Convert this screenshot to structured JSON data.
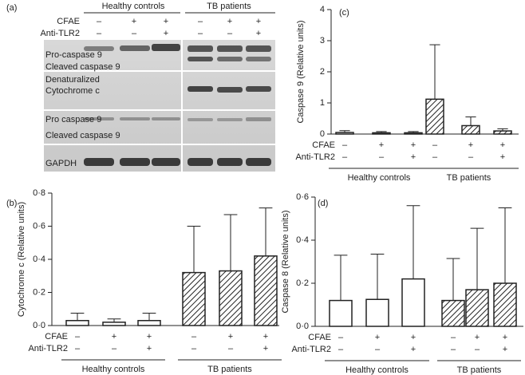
{
  "blot": {
    "panel_label": "(a)",
    "groups": [
      "Healthy controls",
      "TB patients"
    ],
    "conditions": [
      {
        "name": "CFAE",
        "signs": [
          "–",
          "+",
          "+"
        ]
      },
      {
        "name": "Anti-TLR2",
        "signs": [
          "–",
          "–",
          "+"
        ]
      }
    ],
    "rows": [
      "Pro-caspase 9",
      "Cleaved caspase 9",
      "Denaturalized",
      "Cytochrome c",
      "Pro caspase 9",
      "Cleaved caspase 9",
      "GAPDH"
    ]
  },
  "chart_data": [
    {
      "type": "bar",
      "panel_label": "(c)",
      "ylabel": "Caspase 9 (Relative units)",
      "ylim": [
        0,
        4
      ],
      "yticks": [
        0,
        1,
        2,
        3,
        4
      ],
      "conditions": [
        {
          "name": "CFAE",
          "signs": [
            "–",
            "+",
            "+"
          ]
        },
        {
          "name": "Anti-TLR2",
          "signs": [
            "–",
            "–",
            "+"
          ]
        }
      ],
      "groups": [
        {
          "label": "Healthy controls",
          "hatched": false,
          "values": [
            0.05,
            0.04,
            0.04
          ],
          "errors": [
            0.06,
            0.04,
            0.04
          ]
        },
        {
          "label": "TB patients",
          "hatched": true,
          "values": [
            1.12,
            0.27,
            0.1
          ],
          "errors": [
            1.75,
            0.28,
            0.07
          ]
        }
      ]
    },
    {
      "type": "bar",
      "panel_label": "(b)",
      "ylabel": "Cytochrome c (Relative units)",
      "ylim": [
        0,
        0.8
      ],
      "yticks": [
        {
          "value": 0,
          "label": "0·0"
        },
        {
          "value": 0.2,
          "label": "0·2"
        },
        {
          "value": 0.4,
          "label": "0·4"
        },
        {
          "value": 0.6,
          "label": "0·6"
        },
        {
          "value": 0.8,
          "label": "0·8"
        }
      ],
      "conditions": [
        {
          "name": "CFAE",
          "signs": [
            "–",
            "+",
            "+"
          ]
        },
        {
          "name": "Anti-TLR2",
          "signs": [
            "–",
            "–",
            "+"
          ]
        }
      ],
      "groups": [
        {
          "label": "Healthy controls",
          "hatched": false,
          "values": [
            0.03,
            0.02,
            0.03
          ],
          "errors": [
            0.045,
            0.02,
            0.045
          ]
        },
        {
          "label": "TB patients",
          "hatched": true,
          "values": [
            0.32,
            0.33,
            0.42
          ],
          "errors": [
            0.28,
            0.34,
            0.29
          ]
        }
      ]
    },
    {
      "type": "bar",
      "panel_label": "(d)",
      "ylabel": "Caspase 8 (Relative units)",
      "ylim": [
        0,
        0.6
      ],
      "yticks": [
        {
          "value": 0,
          "label": "0·0"
        },
        {
          "value": 0.2,
          "label": "0·2"
        },
        {
          "value": 0.4,
          "label": "0·4"
        },
        {
          "value": 0.6,
          "label": "0·6"
        }
      ],
      "conditions": [
        {
          "name": "CFAE",
          "signs": [
            "–",
            "+",
            "+"
          ]
        },
        {
          "name": "Anti-TLR2",
          "signs": [
            "–",
            "–",
            "+"
          ]
        }
      ],
      "groups": [
        {
          "label": "Healthy controls",
          "hatched": false,
          "values": [
            0.12,
            0.125,
            0.22
          ],
          "errors": [
            0.21,
            0.21,
            0.34
          ]
        },
        {
          "label": "TB patients",
          "hatched": true,
          "values": [
            0.12,
            0.17,
            0.2
          ],
          "errors": [
            0.195,
            0.285,
            0.35
          ]
        }
      ]
    }
  ]
}
